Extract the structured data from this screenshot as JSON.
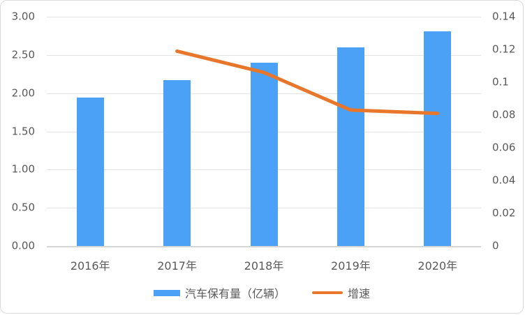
{
  "chart_data": {
    "type": "bar",
    "subtype": "combo-bar-line",
    "title": "",
    "categories": [
      "2016年",
      "2017年",
      "2018年",
      "2019年",
      "2020年"
    ],
    "series": [
      {
        "name": "汽车保有量（亿辆）",
        "type": "bar",
        "axis": "left",
        "color": "#4AA1F6",
        "values": [
          1.94,
          2.17,
          2.4,
          2.6,
          2.81
        ]
      },
      {
        "name": "增速",
        "type": "line",
        "axis": "right",
        "color": "#E8772C",
        "values": [
          null,
          0.119,
          0.106,
          0.083,
          0.081
        ]
      }
    ],
    "left_axis": {
      "min": 0,
      "max": 3,
      "tick_labels": [
        "3.00",
        "2.50",
        "2.00",
        "1.50",
        "1.00",
        "0.50",
        "0.00"
      ]
    },
    "right_axis": {
      "min": 0,
      "max": 0.14,
      "tick_labels": [
        "0.14",
        "0.12",
        "0.1",
        "0.08",
        "0.06",
        "0.04",
        "0.02",
        "0"
      ]
    },
    "grid": true,
    "legend_position": "bottom"
  },
  "colors": {
    "bar": "#4AA1F6",
    "line": "#E8772C",
    "grid": "#E3E3E3",
    "axis": "#D6D6D6",
    "text": "#595959",
    "card_border": "#D9D9D9",
    "background": "#FFFFFF"
  }
}
